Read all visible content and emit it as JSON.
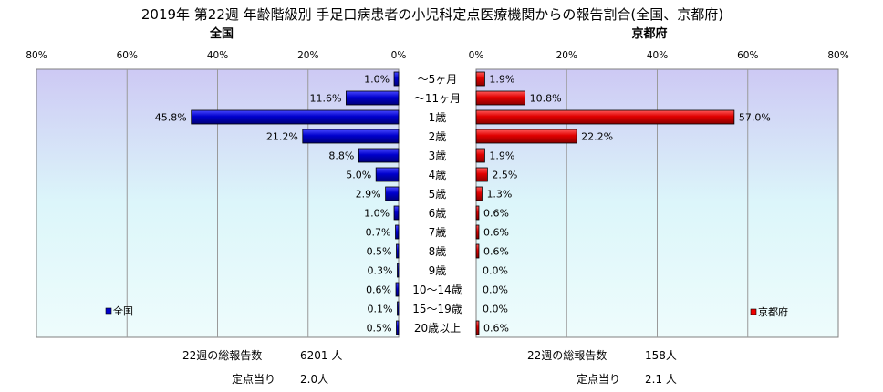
{
  "chart_data": {
    "type": "bar",
    "orientation": "horizontal-butterfly",
    "title": "2019年 第22週 年齢階級別 手足口病患者の小児科定点医療機関からの報告割合(全国、京都府)",
    "categories": [
      "～5ヶ月",
      "～11ヶ月",
      "1歳",
      "2歳",
      "3歳",
      "4歳",
      "5歳",
      "6歳",
      "7歳",
      "8歳",
      "9歳",
      "10～14歳",
      "15～19歳",
      "20歳以上"
    ],
    "axis_ticks": [
      "80%",
      "60%",
      "40%",
      "20%",
      "0%"
    ],
    "axis_ticks_right": [
      "0%",
      "20%",
      "40%",
      "60%",
      "80%"
    ],
    "xlim": [
      0,
      80
    ],
    "grid": true,
    "panels": [
      {
        "name": "全国",
        "header": "全国",
        "legend": "全国",
        "legend_position": "bottom-left",
        "color": "#0000cc",
        "values": [
          1.0,
          11.6,
          45.8,
          21.2,
          8.8,
          5.0,
          2.9,
          1.0,
          0.7,
          0.5,
          0.3,
          0.6,
          0.1,
          0.5
        ],
        "labels": [
          "1.0%",
          "11.6%",
          "45.8%",
          "21.2%",
          "8.8%",
          "5.0%",
          "2.9%",
          "1.0%",
          "0.7%",
          "0.5%",
          "0.3%",
          "0.6%",
          "0.1%",
          "0.5%"
        ],
        "footer_total_label": "22週の総報告数",
        "footer_total_value": "6201 人",
        "footer_per_label": "定点当り",
        "footer_per_value": "2.0人"
      },
      {
        "name": "京都府",
        "header": "京都府",
        "legend": "京都府",
        "legend_position": "bottom-right",
        "color": "#ee0000",
        "values": [
          1.9,
          10.8,
          57.0,
          22.2,
          1.9,
          2.5,
          1.3,
          0.6,
          0.6,
          0.6,
          0.0,
          0.0,
          0.0,
          0.6
        ],
        "labels": [
          "1.9%",
          "10.8%",
          "57.0%",
          "22.2%",
          "1.9%",
          "2.5%",
          "1.3%",
          "0.6%",
          "0.6%",
          "0.6%",
          "0.0%",
          "0.0%",
          "0.0%",
          "0.6%"
        ],
        "footer_total_label": "22週の総報告数",
        "footer_total_value": "158人",
        "footer_per_label": "定点当り",
        "footer_per_value": "2.1 人"
      }
    ]
  }
}
